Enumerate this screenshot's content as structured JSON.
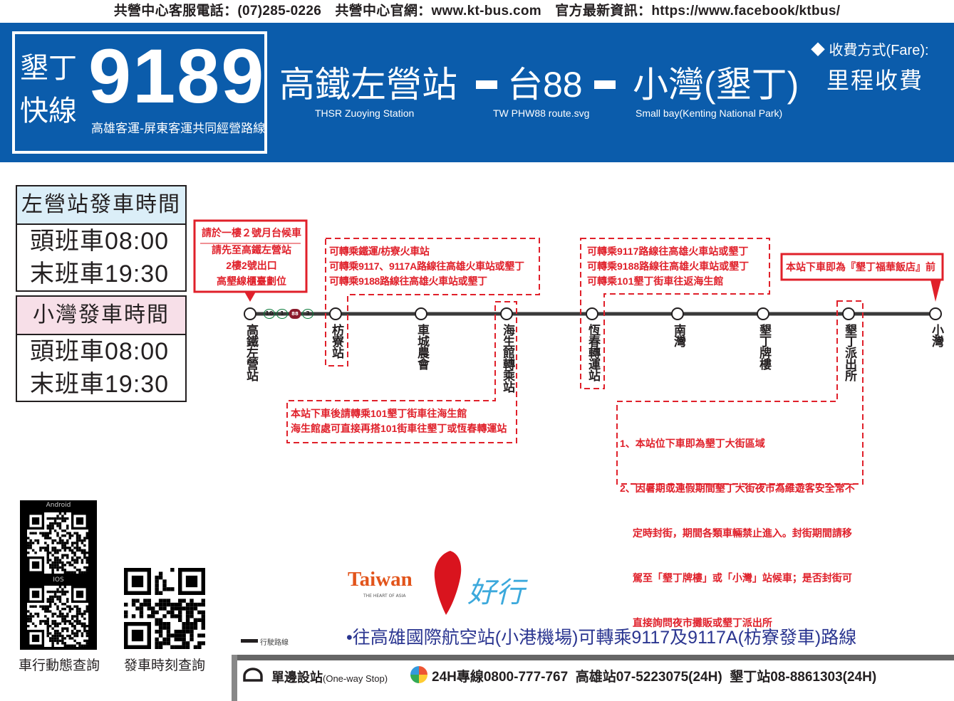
{
  "top_info": "共營中心客服電話：(07)285-0226　共營中心官網：www.kt-bus.com　官方最新資訊：https://www.facebook/ktbus/",
  "route": {
    "name_line1": "墾丁",
    "name_line2": "快線",
    "number": "9189",
    "operators": "高雄客運-屏東客運共同經營路線"
  },
  "endpoints": {
    "origin": "高鐵左營站",
    "origin_en": "THSR Zuoying Station",
    "via": "台88",
    "via_en": "TW PHW88 route.svg",
    "dest": "小灣(墾丁)",
    "dest_en": "Small bay(Kenting National Park)"
  },
  "fare": {
    "label": "◆ 收費方式(Fare):",
    "value": "里程收費"
  },
  "schedules": [
    {
      "title": "左營站發車時間",
      "first": "頭班車08:00",
      "last": "末班車19:30",
      "color": "#dbeef8"
    },
    {
      "title": "小灣發車時間",
      "first": "頭班車08:00",
      "last": "末班車19:30",
      "color": "#f7dfe8"
    }
  ],
  "stops": [
    "高鐵左營站",
    "枋寮站",
    "車城農會",
    "海生館轉乘站",
    "恆春轉運站",
    "南灣",
    "墾丁牌樓",
    "墾丁派出所",
    "小灣"
  ],
  "highway_shields": [
    "10",
    "1",
    "88",
    "3"
  ],
  "notes": {
    "origin_box": [
      "請於一樓２號月台候車",
      "請先至高鐵左營站",
      "2樓2號出口",
      "高墾線櫃臺劃位"
    ],
    "fangliao": [
      "可轉乘鐵運/枋寮火車站",
      "可轉乘9117、9117A路線往高雄火車站或墾丁",
      "可轉乘9188路線往高雄火車站或墾丁"
    ],
    "aquarium": [
      "本站下車後請轉乘101墾丁街車往海生館",
      "海生館處可直接再搭101街車往墾丁或恆春轉運站"
    ],
    "hengchun": [
      "可轉乘9117路線往高雄火車站或墾丁",
      "可轉乘9188路線往高雄火車站或墾丁",
      "可轉乘101墾丁街車往返海生館"
    ],
    "dest_box": "本站下車即為『墾丁福華飯店』前",
    "police": [
      "1、本站位下車即為墾丁大街區域",
      "2、因暑期或連假期間墾丁大街夜市為維遊客安全常不",
      "　 定時封街，期間各類車輛禁止進入。封街期間請移",
      "　 駕至「墾丁牌樓」或「小灣」站候車；是否封街可",
      "　 直接詢問夜市攤販或墾丁派出所"
    ]
  },
  "qr": {
    "android": "Android",
    "ios": "IOS",
    "label1": "車行動態查詢",
    "label2": "發車時刻查詢"
  },
  "logo": {
    "taiwan": "Taiwan",
    "tagline": "THE HEART OF ASIA",
    "chinese": "好行"
  },
  "legend": "行駛路線",
  "airport_note": "•往高雄國際航空站(小港機場)可轉乘9117及9117A(枋寮發車)路線",
  "footer": {
    "oneway": "單邊設站",
    "oneway_en": "(One-way Stop)",
    "hotlines": "24H專線0800-777-767  高雄站07-5223075(24H)  墾丁站08-8861303(24H)"
  },
  "colors": {
    "brand_blue": "#0b5cab",
    "alert_red": "#e0202a",
    "route_line": "#3a3a3a"
  }
}
